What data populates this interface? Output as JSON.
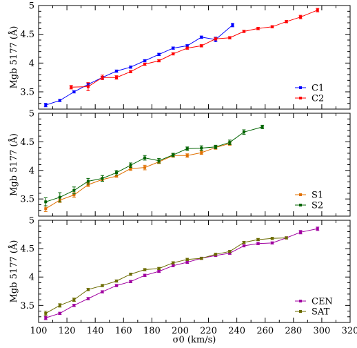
{
  "chart_data": [
    {
      "type": "line",
      "xlabel": "σ0 (km/s)",
      "ylabel": "Mgb 5177 (Å)",
      "xlim": [
        100,
        320
      ],
      "ylim": [
        3.2,
        5.0
      ],
      "xticks": [
        100,
        120,
        140,
        160,
        180,
        200,
        220,
        240,
        260,
        280,
        300,
        320
      ],
      "yticks": [
        3.5,
        4,
        4.5,
        5
      ],
      "ytick_labels": [
        "3.5",
        "4",
        "4.5",
        "5"
      ],
      "legend_position": "bottom-right",
      "series": [
        {
          "name": "C1",
          "color": "#0000ff",
          "x": [
            105,
            115,
            125,
            135,
            145,
            155,
            165,
            175,
            185,
            195,
            205,
            215,
            225,
            237
          ],
          "y": [
            3.27,
            3.35,
            3.5,
            3.63,
            3.75,
            3.86,
            3.93,
            4.04,
            4.15,
            4.26,
            4.3,
            4.45,
            4.41,
            4.66
          ],
          "err": [
            0.03,
            0.02,
            0.02,
            0.02,
            0.02,
            0.02,
            0.02,
            0.02,
            0.02,
            0.02,
            0.02,
            0.02,
            0.04,
            0.03
          ]
        },
        {
          "name": "C2",
          "color": "#ff0000",
          "x": [
            123,
            135,
            145,
            155,
            165,
            175,
            185,
            195,
            205,
            215,
            225,
            235,
            245,
            255,
            265,
            275,
            285,
            297
          ],
          "y": [
            3.58,
            3.59,
            3.75,
            3.75,
            3.85,
            3.98,
            4.04,
            4.16,
            4.26,
            4.3,
            4.42,
            4.44,
            4.55,
            4.6,
            4.63,
            4.72,
            4.8,
            4.92
          ],
          "err": [
            0.03,
            0.07,
            0.04,
            0.03,
            0.02,
            0.02,
            0.02,
            0.02,
            0.02,
            0.02,
            0.02,
            0.02,
            0.02,
            0.02,
            0.02,
            0.02,
            0.03,
            0.03
          ]
        }
      ]
    },
    {
      "type": "line",
      "xlabel": "σ0 (km/s)",
      "ylabel": "Mgb 5177 (Å)",
      "xlim": [
        100,
        320
      ],
      "ylim": [
        3.2,
        5.0
      ],
      "xticks": [
        100,
        120,
        140,
        160,
        180,
        200,
        220,
        240,
        260,
        280,
        300,
        320
      ],
      "yticks": [
        3.5,
        4,
        4.5,
        5
      ],
      "ytick_labels": [
        "3.5",
        "4",
        "4.5",
        "5"
      ],
      "legend_position": "bottom-right",
      "series": [
        {
          "name": "S1",
          "color": "#e07000",
          "x": [
            105,
            115,
            125,
            135,
            145,
            155,
            165,
            175,
            185,
            195,
            205,
            215,
            225,
            235
          ],
          "y": [
            3.33,
            3.48,
            3.57,
            3.75,
            3.84,
            3.9,
            4.03,
            4.05,
            4.15,
            4.26,
            4.26,
            4.31,
            4.4,
            4.47
          ],
          "err": [
            0.05,
            0.04,
            0.04,
            0.03,
            0.03,
            0.02,
            0.03,
            0.04,
            0.03,
            0.03,
            0.03,
            0.03,
            0.03,
            0.03
          ]
        },
        {
          "name": "S2",
          "color": "#006400",
          "x": [
            105,
            115,
            125,
            135,
            145,
            155,
            165,
            175,
            185,
            195,
            205,
            215,
            225,
            235,
            245,
            258
          ],
          "y": [
            3.45,
            3.53,
            3.65,
            3.81,
            3.86,
            3.96,
            4.09,
            4.22,
            4.17,
            4.27,
            4.38,
            4.39,
            4.41,
            4.49,
            4.67,
            4.76
          ],
          "err": [
            0.07,
            0.08,
            0.06,
            0.05,
            0.05,
            0.04,
            0.04,
            0.04,
            0.04,
            0.03,
            0.03,
            0.04,
            0.03,
            0.04,
            0.04,
            0.03
          ]
        }
      ]
    },
    {
      "type": "line",
      "xlabel": "σ0 (km/s)",
      "ylabel": "Mgb 5177 (Å)",
      "xlim": [
        100,
        320
      ],
      "ylim": [
        3.2,
        5.0
      ],
      "xticks": [
        100,
        120,
        140,
        160,
        180,
        200,
        220,
        240,
        260,
        280,
        300,
        320
      ],
      "xtick_labels": [
        "100",
        "120",
        "140",
        "160",
        "180",
        "200",
        "220",
        "240",
        "260",
        "280",
        "300",
        "320"
      ],
      "yticks": [
        3.5,
        4,
        4.5,
        5
      ],
      "ytick_labels": [
        "3.5",
        "4",
        "4.5",
        "5"
      ],
      "legend_position": "bottom-right",
      "series": [
        {
          "name": "CEN",
          "color": "#a000a0",
          "x": [
            105,
            115,
            125,
            135,
            145,
            155,
            165,
            175,
            185,
            195,
            205,
            215,
            225,
            235,
            245,
            255,
            265,
            275,
            285,
            297
          ],
          "y": [
            3.28,
            3.36,
            3.5,
            3.62,
            3.74,
            3.85,
            3.92,
            4.03,
            4.1,
            4.2,
            4.26,
            4.33,
            4.38,
            4.42,
            4.55,
            4.59,
            4.6,
            4.69,
            4.79,
            4.85
          ],
          "err": [
            0.03,
            0.02,
            0.02,
            0.02,
            0.02,
            0.02,
            0.02,
            0.02,
            0.02,
            0.02,
            0.02,
            0.02,
            0.02,
            0.02,
            0.02,
            0.02,
            0.02,
            0.02,
            0.03,
            0.03
          ]
        },
        {
          "name": "SAT",
          "color": "#6b6b00",
          "x": [
            105,
            115,
            125,
            135,
            145,
            155,
            165,
            175,
            185,
            195,
            205,
            215,
            225,
            235,
            245,
            255,
            265,
            275
          ],
          "y": [
            3.36,
            3.5,
            3.6,
            3.78,
            3.85,
            3.93,
            4.05,
            4.13,
            4.15,
            4.25,
            4.31,
            4.33,
            4.4,
            4.45,
            4.61,
            4.66,
            4.68,
            4.69
          ],
          "err": [
            0.04,
            0.03,
            0.03,
            0.02,
            0.02,
            0.02,
            0.02,
            0.02,
            0.02,
            0.02,
            0.02,
            0.02,
            0.02,
            0.02,
            0.02,
            0.02,
            0.02,
            0.02
          ]
        }
      ]
    }
  ]
}
